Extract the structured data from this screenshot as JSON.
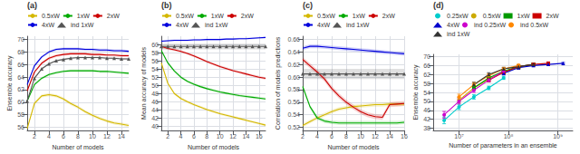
{
  "chart_data": [
    {
      "type": "line",
      "title": "(a)",
      "xlabel": "Number of models",
      "ylabel": "Ensemble accuracy",
      "xlim": [
        1,
        15
      ],
      "ylim": [
        55.5,
        70.5
      ],
      "xticks": [
        2,
        4,
        6,
        8,
        10,
        12,
        14
      ],
      "yticks": [
        56,
        58,
        60,
        62,
        64,
        66,
        68,
        70
      ],
      "grid": true,
      "legend": "top",
      "series": [
        {
          "name": "0.5xW",
          "color": "#d4b800",
          "x": [
            1,
            2,
            3,
            4,
            5,
            6,
            7,
            8,
            9,
            10,
            11,
            12,
            13,
            14,
            15
          ],
          "values": [
            55.8,
            59.8,
            61.0,
            61.2,
            61.0,
            60.5,
            59.8,
            59.2,
            58.5,
            57.9,
            57.4,
            57.0,
            56.7,
            56.5,
            56.3
          ],
          "band": 0.25
        },
        {
          "name": "1xW",
          "color": "#00aa00",
          "x": [
            1,
            2,
            3,
            4,
            5,
            6,
            7,
            8,
            9,
            10,
            11,
            12,
            13,
            14,
            15
          ],
          "values": [
            60.2,
            62.8,
            63.8,
            64.4,
            64.7,
            64.9,
            65.0,
            65.0,
            65.0,
            65.0,
            64.9,
            64.9,
            64.8,
            64.7,
            64.6
          ],
          "band": 0.2
        },
        {
          "name": "2xW",
          "color": "#cc0000",
          "x": [
            1,
            2,
            3,
            4,
            5,
            6,
            7,
            8,
            9,
            10,
            11,
            12,
            13,
            14,
            15
          ],
          "values": [
            61.8,
            64.8,
            66.2,
            67.0,
            67.4,
            67.6,
            67.7,
            67.7,
            67.7,
            67.6,
            67.6,
            67.5,
            67.5,
            67.4,
            67.4
          ],
          "band": 0.2
        },
        {
          "name": "4xW",
          "color": "#0000dd",
          "x": [
            1,
            2,
            3,
            4,
            5,
            6,
            7,
            8,
            9,
            10,
            11,
            12,
            13,
            14,
            15
          ],
          "values": [
            62.8,
            65.8,
            67.2,
            68.0,
            68.4,
            68.5,
            68.5,
            68.5,
            68.4,
            68.4,
            68.3,
            68.3,
            68.2,
            68.2,
            68.1
          ],
          "band": 0.2
        },
        {
          "name": "ind 1xW",
          "color": "#555555",
          "x": [
            1,
            2,
            3,
            4,
            5,
            6,
            7,
            8,
            9,
            10,
            11,
            12,
            13,
            14,
            15
          ],
          "values": [
            60.2,
            63.8,
            65.3,
            66.1,
            66.6,
            66.8,
            67.0,
            67.1,
            67.1,
            67.1,
            67.1,
            67.0,
            67.0,
            66.9,
            66.9
          ],
          "band": 0.15,
          "marker": "triangle"
        }
      ]
    },
    {
      "type": "line",
      "title": "(b)",
      "xlabel": "Number of models",
      "ylabel": "Mean accuracy of models",
      "xlim": [
        1,
        17
      ],
      "ylim": [
        39,
        62
      ],
      "xticks": [
        2,
        4,
        6,
        8,
        10,
        12,
        14,
        16
      ],
      "yticks": [
        40,
        42,
        44,
        46,
        48,
        50,
        52,
        54,
        56,
        58,
        60
      ],
      "grid": true,
      "legend": "top",
      "series": [
        {
          "name": "0.5xW",
          "color": "#d4b800",
          "x": [
            1,
            2,
            3,
            4,
            5,
            6,
            7,
            8,
            9,
            10,
            11,
            12,
            13,
            14,
            15,
            16,
            17
          ],
          "values": [
            55.5,
            50.5,
            48.0,
            46.8,
            46.0,
            45.3,
            44.7,
            44.1,
            43.6,
            43.1,
            42.7,
            42.3,
            41.9,
            41.5,
            41.1,
            40.7,
            40.3
          ],
          "band": 0.3
        },
        {
          "name": "1xW",
          "color": "#00aa00",
          "x": [
            1,
            2,
            3,
            4,
            5,
            6,
            7,
            8,
            9,
            10,
            11,
            12,
            13,
            14,
            15,
            16,
            17
          ],
          "values": [
            58.5,
            55.5,
            53.5,
            52.0,
            51.0,
            50.3,
            49.7,
            49.2,
            48.8,
            48.4,
            48.1,
            47.8,
            47.5,
            47.3,
            47.1,
            46.9,
            46.7
          ],
          "band": 0.3
        },
        {
          "name": "2xW",
          "color": "#cc0000",
          "x": [
            1,
            2,
            3,
            4,
            5,
            6,
            7,
            8,
            9,
            10,
            11,
            12,
            13,
            14,
            15,
            16,
            17
          ],
          "values": [
            59.5,
            59.0,
            58.7,
            58.3,
            57.8,
            57.2,
            56.5,
            55.8,
            55.2,
            54.6,
            54.1,
            53.6,
            53.2,
            52.8,
            52.4,
            52.0,
            51.7
          ],
          "band": 0.3
        },
        {
          "name": "4xW",
          "color": "#0000dd",
          "x": [
            1,
            2,
            3,
            4,
            5,
            6,
            7,
            8,
            9,
            10,
            11,
            12,
            13,
            14,
            15,
            16,
            17
          ],
          "values": [
            60.8,
            60.9,
            61.0,
            61.0,
            61.0,
            61.1,
            61.1,
            61.2,
            61.2,
            61.2,
            61.3,
            61.3,
            61.4,
            61.4,
            61.5,
            61.6,
            61.7
          ],
          "band": 0.2
        },
        {
          "name": "ind 1xW",
          "color": "#555555",
          "x": [
            1,
            2,
            3,
            4,
            5,
            6,
            7,
            8,
            9,
            10,
            11,
            12,
            13,
            14,
            15,
            16,
            17
          ],
          "values": [
            59.5,
            59.5,
            59.5,
            59.5,
            59.5,
            59.5,
            59.5,
            59.5,
            59.5,
            59.5,
            59.5,
            59.5,
            59.5,
            59.5,
            59.5,
            59.5,
            59.5
          ],
          "band": 0.7,
          "marker": "triangle"
        }
      ]
    },
    {
      "type": "line",
      "title": "(c)",
      "xlabel": "Number of models",
      "ylabel": "Correlation of models predictions",
      "xlim": [
        2,
        16
      ],
      "ylim": [
        0.515,
        0.665
      ],
      "xticks": [
        2,
        4,
        6,
        8,
        10,
        12,
        14,
        16
      ],
      "yticks": [
        0.52,
        0.54,
        0.56,
        0.58,
        {
          "value": 0.6,
          "label": "0.60"
        },
        0.62,
        0.64,
        0.66
      ],
      "grid": true,
      "legend": "top",
      "series": [
        {
          "name": "0.5xW",
          "color": "#d4b800",
          "x": [
            2,
            3,
            4,
            5,
            6,
            7,
            8,
            9,
            10,
            11,
            12,
            13,
            14,
            15,
            16
          ],
          "values": [
            0.523,
            0.529,
            0.535,
            0.54,
            0.545,
            0.549,
            0.551,
            0.553,
            0.554,
            0.555,
            0.556,
            0.556,
            0.557,
            0.557,
            0.557
          ],
          "band": 0.003
        },
        {
          "name": "1xW",
          "color": "#00aa00",
          "x": [
            2,
            3,
            4,
            5,
            6,
            7,
            8,
            9,
            10,
            11,
            12,
            13,
            14,
            15,
            16
          ],
          "values": [
            0.585,
            0.553,
            0.535,
            0.53,
            0.528,
            0.527,
            0.527,
            0.527,
            0.527,
            0.527,
            0.527,
            0.527,
            0.527,
            0.527,
            0.528
          ],
          "band": 0.003
        },
        {
          "name": "2xW",
          "color": "#cc0000",
          "x": [
            2,
            3,
            4,
            5,
            6,
            7,
            8,
            9,
            10,
            11,
            12,
            13,
            14,
            15,
            16
          ],
          "values": [
            0.628,
            0.618,
            0.608,
            0.597,
            0.582,
            0.57,
            0.56,
            0.552,
            0.545,
            0.54,
            0.537,
            0.536,
            0.556,
            0.557,
            0.558
          ],
          "band": 0.004
        },
        {
          "name": "4xW",
          "color": "#0000dd",
          "x": [
            2,
            3,
            4,
            5,
            6,
            7,
            8,
            9,
            10,
            11,
            12,
            13,
            14,
            15,
            16
          ],
          "values": [
            0.646,
            0.649,
            0.649,
            0.648,
            0.647,
            0.646,
            0.645,
            0.644,
            0.643,
            0.642,
            0.641,
            0.64,
            0.639,
            0.638,
            0.637
          ],
          "band": 0.003
        },
        {
          "name": "ind 1xW",
          "color": "#555555",
          "x": [
            2,
            3,
            4,
            5,
            6,
            7,
            8,
            9,
            10,
            11,
            12,
            13,
            14,
            15,
            16
          ],
          "values": [
            0.605,
            0.605,
            0.605,
            0.605,
            0.605,
            0.605,
            0.605,
            0.605,
            0.605,
            0.605,
            0.605,
            0.605,
            0.605,
            0.605,
            0.605
          ],
          "band": 0.008,
          "marker": "triangle"
        }
      ]
    },
    {
      "type": "line",
      "title": "(d)",
      "xlabel": "Number of parameters in an ensemble",
      "ylabel": "Ensemble accuracy",
      "log": "x",
      "xlim": [
        3000000,
        2000000000
      ],
      "ylim": [
        37,
        71
      ],
      "xticks": [
        {
          "value": 10000000,
          "label": "10⁷"
        },
        {
          "value": 100000000,
          "label": "10⁸"
        },
        {
          "value": 1000000000,
          "label": "10⁹"
        }
      ],
      "yticks": [
        38,
        42,
        46,
        50,
        54,
        58,
        62,
        66,
        70
      ],
      "grid": true,
      "legend": "top",
      "series": [
        {
          "name": "0.25xW",
          "color": "#00cccc",
          "x": [
            5000000,
            10000000,
            20000000,
            40000000,
            80000000
          ],
          "values": [
            41.5,
            47.5,
            52.0,
            56.0,
            60.5
          ],
          "yerr": [
            1.5,
            1.2,
            1.0,
            0.8,
            0.7
          ],
          "marker": "circle",
          "line_style": "solid"
        },
        {
          "name": "0.5xW",
          "color": "#ccaa00",
          "x": [
            10000000,
            20000000,
            40000000,
            80000000,
            160000000
          ],
          "values": [
            50.5,
            56.0,
            60.0,
            63.0,
            65.0
          ],
          "yerr": [
            1.2,
            1.0,
            0.8,
            0.7,
            0.6
          ],
          "marker": "circle",
          "line_style": "solid"
        },
        {
          "name": "1xW",
          "color": "#009900",
          "x": [
            20000000,
            40000000,
            80000000,
            160000000,
            320000000
          ],
          "values": [
            56.0,
            60.5,
            63.5,
            65.5,
            66.5
          ],
          "yerr": [
            1.0,
            0.8,
            0.7,
            0.6,
            0.5
          ],
          "marker": "square",
          "line_style": "solid"
        },
        {
          "name": "2xW",
          "color": "#cc0000",
          "x": [
            40000000,
            80000000,
            160000000,
            320000000,
            640000000
          ],
          "values": [
            59.5,
            63.0,
            65.5,
            66.5,
            67.0
          ],
          "yerr": [
            0.8,
            0.7,
            0.6,
            0.5,
            0.5
          ],
          "marker": "square",
          "line_style": "solid"
        },
        {
          "name": "4xW",
          "color": "#0000cc",
          "x": [
            80000000,
            160000000,
            320000000,
            640000000,
            1280000000
          ],
          "values": [
            62.5,
            65.0,
            66.0,
            66.5,
            67.0
          ],
          "yerr": [
            0.7,
            0.6,
            0.5,
            0.5,
            0.4
          ],
          "marker": "triangle",
          "line_style": "solid"
        },
        {
          "name": "ind 0.25xW",
          "color": "#cc00cc",
          "x": [
            5000000,
            10000000,
            20000000,
            40000000,
            80000000
          ],
          "values": [
            44.0,
            50.0,
            55.0,
            59.5,
            63.5
          ],
          "yerr": [
            1.5,
            1.2,
            1.0,
            0.8,
            0.7
          ],
          "marker": "circle",
          "line_style": "solid"
        },
        {
          "name": "ind 0.5xW",
          "color": "#ff8800",
          "x": [
            10000000,
            20000000,
            40000000,
            80000000,
            160000000
          ],
          "values": [
            52.0,
            57.5,
            61.5,
            64.5,
            66.0
          ],
          "yerr": [
            1.2,
            1.0,
            0.8,
            0.7,
            0.6
          ],
          "marker": "circle",
          "line_style": "solid"
        },
        {
          "name": "ind 1xW",
          "color": "#333333",
          "x": [
            20000000,
            40000000,
            80000000,
            160000000,
            320000000
          ],
          "values": [
            57.5,
            62.0,
            64.5,
            65.5,
            66.5
          ],
          "yerr": [
            1.0,
            0.8,
            0.7,
            0.6,
            0.5
          ],
          "marker": "triangle",
          "line_style": "solid"
        }
      ]
    }
  ]
}
